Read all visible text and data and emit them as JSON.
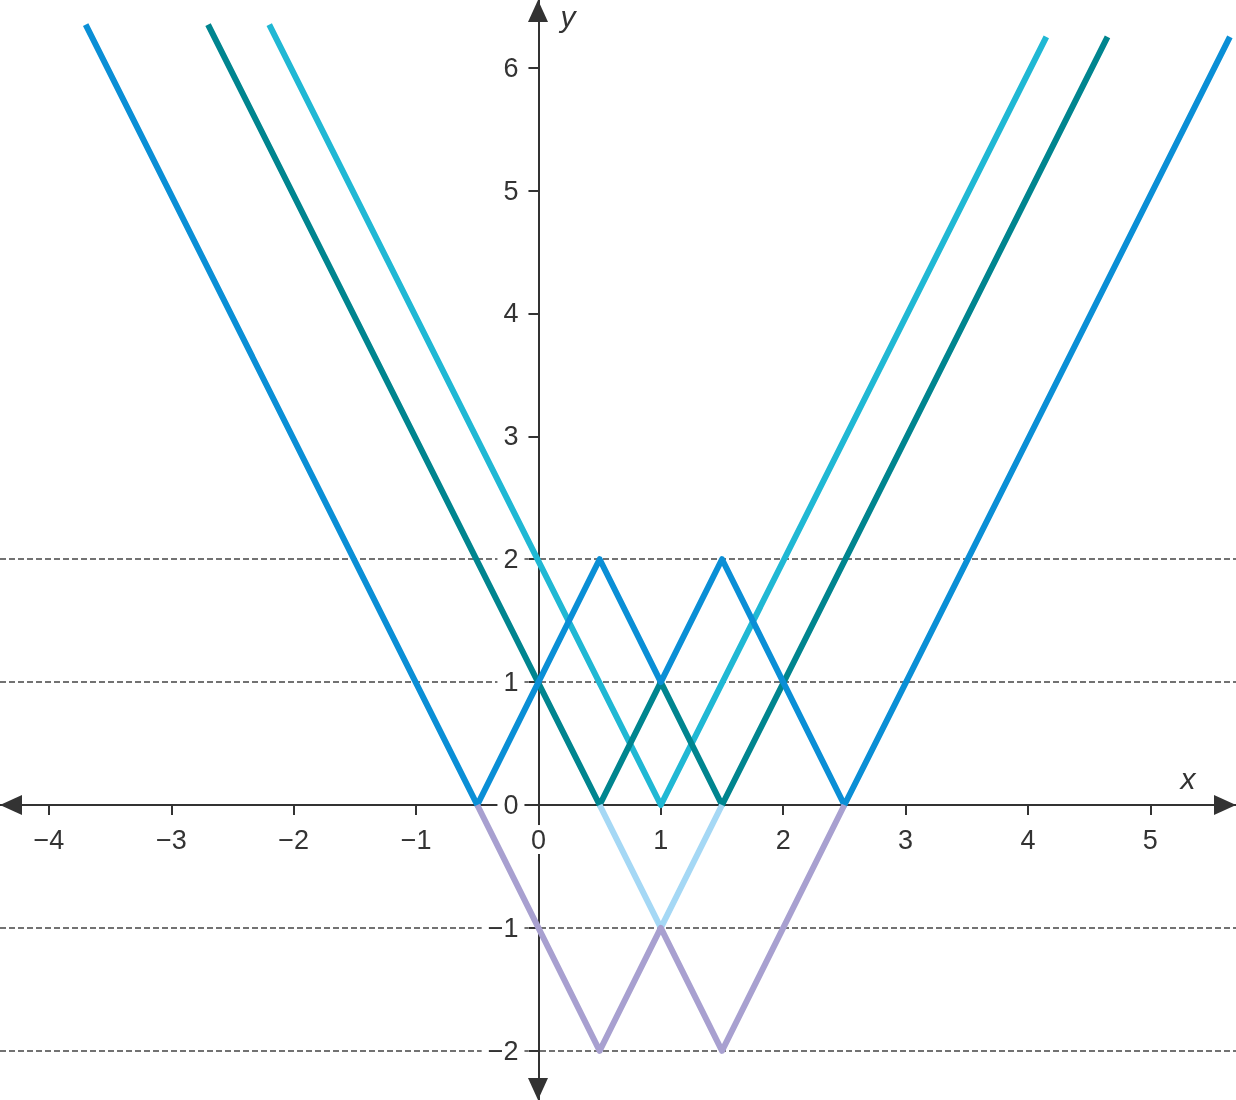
{
  "chart_data": {
    "type": "line",
    "xlabel": "x",
    "ylabel": "y",
    "xlim": [
      -4.4,
      5.7
    ],
    "ylim": [
      -2.4,
      6.55
    ],
    "xticks": [
      {
        "value": -4,
        "label": "−4"
      },
      {
        "value": -3,
        "label": "−3"
      },
      {
        "value": -2,
        "label": "−2"
      },
      {
        "value": -1,
        "label": "−1"
      },
      0,
      1,
      2,
      3,
      4,
      5
    ],
    "yticks": [
      {
        "value": -2,
        "label": "−2"
      },
      {
        "value": -1,
        "label": "−1"
      },
      0,
      1,
      2,
      3,
      4,
      5,
      6
    ],
    "series": [
      {
        "color": "#20b8d4",
        "x": [
          -2.2,
          1,
          4.15
        ],
        "values": [
          6.35,
          0,
          6.25
        ]
      },
      {
        "color": "#00858f",
        "x": [
          -2.7,
          0.5,
          1,
          1.5,
          4.65
        ],
        "values": [
          6.35,
          0,
          1,
          0,
          6.25
        ]
      },
      {
        "color": "#0a8fd6",
        "x": [
          -3.7,
          -0.5,
          0.5,
          1,
          1.5,
          2.5,
          5.65
        ],
        "values": [
          6.35,
          0,
          2,
          1,
          2,
          0,
          6.25
        ]
      },
      {
        "color": "#a5d8f5",
        "x": [
          0.5,
          1,
          1.5
        ],
        "values": [
          0,
          -1,
          0
        ]
      },
      {
        "color": "#a8a0d0",
        "x": [
          -0.5,
          0.5,
          1,
          1.5,
          2.5
        ],
        "values": [
          0,
          -2,
          -1,
          -2,
          0
        ]
      }
    ],
    "ref_lines": [
      {
        "axis": "y",
        "value": 2,
        "line_style": "dashed",
        "color": "#444444"
      },
      {
        "axis": "y",
        "value": 1,
        "line_style": "dashed",
        "color": "#444444"
      },
      {
        "axis": "y",
        "value": -1,
        "line_style": "dashed",
        "color": "#444444"
      },
      {
        "axis": "y",
        "value": -2,
        "line_style": "dashed",
        "color": "#444444"
      }
    ],
    "marker": "none",
    "line_style": "solid",
    "grid": false
  }
}
